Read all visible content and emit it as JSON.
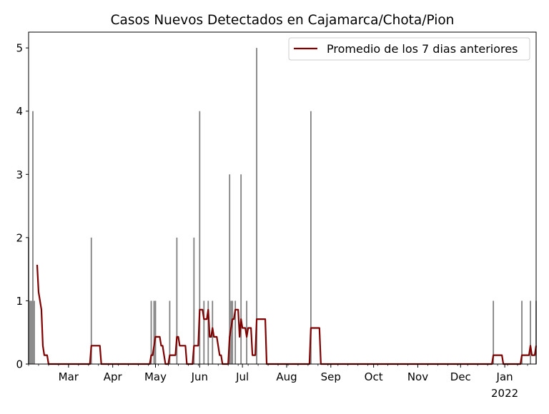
{
  "chart_data": {
    "type": "bar",
    "title": "Casos Nuevos Detectados en Cajamarca/Chota/Pion",
    "xlabel": "",
    "ylabel": "",
    "ylim": [
      0,
      5.25
    ],
    "xlim": [
      "2021-02-01",
      "2022-01-23"
    ],
    "grid": false,
    "legend_placement": "top-right",
    "colors": {
      "bars": "#808080",
      "line": "#800000"
    },
    "yticks": [
      0,
      1,
      2,
      3,
      4,
      5
    ],
    "xticks": [
      {
        "date": "2021-03-01",
        "label": "Mar"
      },
      {
        "date": "2021-04-01",
        "label": "Apr"
      },
      {
        "date": "2021-05-01",
        "label": "May"
      },
      {
        "date": "2021-06-01",
        "label": "Jun"
      },
      {
        "date": "2021-07-01",
        "label": "Jul"
      },
      {
        "date": "2021-08-01",
        "label": "Aug"
      },
      {
        "date": "2021-09-01",
        "label": "Sep"
      },
      {
        "date": "2021-10-01",
        "label": "Oct"
      },
      {
        "date": "2021-11-01",
        "label": "Nov"
      },
      {
        "date": "2021-12-01",
        "label": "Dec"
      },
      {
        "date": "2022-01-01",
        "label": "Jan",
        "sublabel": "2022"
      }
    ],
    "bars": [
      {
        "date": "2021-02-01",
        "value": 2
      },
      {
        "date": "2021-02-02",
        "value": 1
      },
      {
        "date": "2021-02-03",
        "value": 1
      },
      {
        "date": "2021-02-04",
        "value": 4
      },
      {
        "date": "2021-02-05",
        "value": 1
      },
      {
        "date": "2021-03-17",
        "value": 2
      },
      {
        "date": "2021-04-28",
        "value": 1
      },
      {
        "date": "2021-04-30",
        "value": 1
      },
      {
        "date": "2021-05-01",
        "value": 1
      },
      {
        "date": "2021-05-11",
        "value": 1
      },
      {
        "date": "2021-05-16",
        "value": 2
      },
      {
        "date": "2021-05-28",
        "value": 2
      },
      {
        "date": "2021-06-01",
        "value": 4
      },
      {
        "date": "2021-06-04",
        "value": 1
      },
      {
        "date": "2021-06-07",
        "value": 1
      },
      {
        "date": "2021-06-10",
        "value": 1
      },
      {
        "date": "2021-06-22",
        "value": 3
      },
      {
        "date": "2021-06-23",
        "value": 1
      },
      {
        "date": "2021-06-24",
        "value": 1
      },
      {
        "date": "2021-06-26",
        "value": 1
      },
      {
        "date": "2021-06-30",
        "value": 3
      },
      {
        "date": "2021-07-04",
        "value": 1
      },
      {
        "date": "2021-07-11",
        "value": 5
      },
      {
        "date": "2021-08-18",
        "value": 4
      },
      {
        "date": "2021-12-24",
        "value": 1
      },
      {
        "date": "2022-01-13",
        "value": 1
      },
      {
        "date": "2022-01-19",
        "value": 1
      },
      {
        "date": "2022-01-23",
        "value": 1
      }
    ],
    "series": [
      {
        "name": "Promedio de los 7 dias anteriores",
        "points": [
          [
            "2021-02-07",
            1.57
          ],
          [
            "2021-02-08",
            1.14
          ],
          [
            "2021-02-10",
            0.86
          ],
          [
            "2021-02-11",
            0.29
          ],
          [
            "2021-02-12",
            0.14
          ],
          [
            "2021-02-14",
            0.14
          ],
          [
            "2021-02-15",
            0
          ],
          [
            "2021-03-16",
            0
          ],
          [
            "2021-03-17",
            0.29
          ],
          [
            "2021-03-23",
            0.29
          ],
          [
            "2021-03-24",
            0
          ],
          [
            "2021-04-27",
            0
          ],
          [
            "2021-04-28",
            0.14
          ],
          [
            "2021-04-29",
            0.14
          ],
          [
            "2021-04-30",
            0.29
          ],
          [
            "2021-05-01",
            0.43
          ],
          [
            "2021-05-04",
            0.43
          ],
          [
            "2021-05-05",
            0.29
          ],
          [
            "2021-05-06",
            0.29
          ],
          [
            "2021-05-07",
            0.14
          ],
          [
            "2021-05-08",
            0
          ],
          [
            "2021-05-10",
            0
          ],
          [
            "2021-05-11",
            0.14
          ],
          [
            "2021-05-15",
            0.14
          ],
          [
            "2021-05-16",
            0.43
          ],
          [
            "2021-05-17",
            0.43
          ],
          [
            "2021-05-18",
            0.29
          ],
          [
            "2021-05-22",
            0.29
          ],
          [
            "2021-05-23",
            0
          ],
          [
            "2021-05-27",
            0
          ],
          [
            "2021-05-28",
            0.29
          ],
          [
            "2021-05-31",
            0.29
          ],
          [
            "2021-06-01",
            0.86
          ],
          [
            "2021-06-03",
            0.86
          ],
          [
            "2021-06-04",
            0.71
          ],
          [
            "2021-06-06",
            0.71
          ],
          [
            "2021-06-07",
            0.86
          ],
          [
            "2021-06-08",
            0.43
          ],
          [
            "2021-06-09",
            0.43
          ],
          [
            "2021-06-10",
            0.57
          ],
          [
            "2021-06-11",
            0.43
          ],
          [
            "2021-06-13",
            0.43
          ],
          [
            "2021-06-15",
            0.14
          ],
          [
            "2021-06-16",
            0.14
          ],
          [
            "2021-06-17",
            0
          ],
          [
            "2021-06-21",
            0
          ],
          [
            "2021-06-22",
            0.43
          ],
          [
            "2021-06-23",
            0.57
          ],
          [
            "2021-06-24",
            0.71
          ],
          [
            "2021-06-25",
            0.71
          ],
          [
            "2021-06-26",
            0.86
          ],
          [
            "2021-06-28",
            0.86
          ],
          [
            "2021-06-29",
            0.43
          ],
          [
            "2021-06-30",
            0.71
          ],
          [
            "2021-07-01",
            0.57
          ],
          [
            "2021-07-03",
            0.57
          ],
          [
            "2021-07-04",
            0.43
          ],
          [
            "2021-07-05",
            0.57
          ],
          [
            "2021-07-07",
            0.57
          ],
          [
            "2021-07-08",
            0.14
          ],
          [
            "2021-07-10",
            0.14
          ],
          [
            "2021-07-11",
            0.71
          ],
          [
            "2021-07-17",
            0.71
          ],
          [
            "2021-07-18",
            0
          ],
          [
            "2021-08-17",
            0
          ],
          [
            "2021-08-18",
            0.57
          ],
          [
            "2021-08-24",
            0.57
          ],
          [
            "2021-08-25",
            0
          ],
          [
            "2021-12-23",
            0
          ],
          [
            "2021-12-24",
            0.14
          ],
          [
            "2021-12-30",
            0.14
          ],
          [
            "2021-12-31",
            0
          ],
          [
            "2022-01-12",
            0
          ],
          [
            "2022-01-13",
            0.14
          ],
          [
            "2022-01-18",
            0.14
          ],
          [
            "2022-01-19",
            0.29
          ],
          [
            "2022-01-20",
            0.14
          ],
          [
            "2022-01-22",
            0.14
          ],
          [
            "2022-01-23",
            0.29
          ]
        ]
      }
    ]
  }
}
